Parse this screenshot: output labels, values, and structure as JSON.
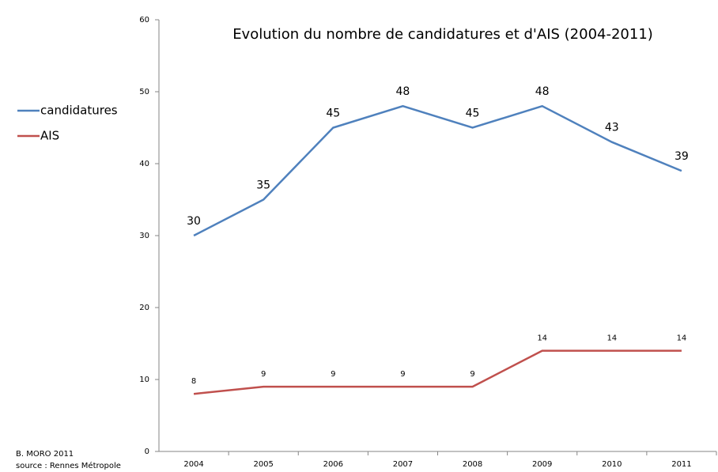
{
  "chart_data": {
    "type": "line",
    "title": "Evolution du nombre de candidatures et d'AIS (2004-2011)",
    "categories": [
      "2004",
      "2005",
      "2006",
      "2007",
      "2008",
      "2009",
      "2010",
      "2011"
    ],
    "series": [
      {
        "name": "candidatures",
        "color": "#4f81bd",
        "values": [
          30,
          35,
          45,
          48,
          45,
          48,
          43,
          39
        ]
      },
      {
        "name": "AIS",
        "color": "#c0504d",
        "values": [
          8,
          9,
          9,
          9,
          9,
          14,
          14,
          14
        ]
      }
    ],
    "ylim": [
      0,
      60
    ],
    "yticks": [
      0,
      10,
      20,
      30,
      40,
      50,
      60
    ],
    "grid": false,
    "legend": "left",
    "annotations": [
      "B. MORO 2011",
      "source : Rennes  Métropole"
    ]
  }
}
